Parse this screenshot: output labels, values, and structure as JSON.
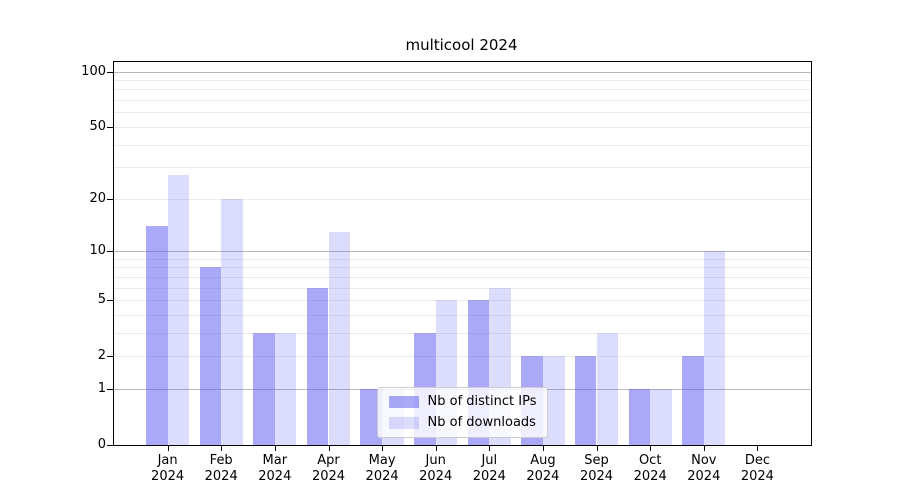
{
  "title": "multicool 2024",
  "chart_data": {
    "type": "bar",
    "title": "multicool 2024",
    "categories": [
      "Jan 2024",
      "Feb 2024",
      "Mar 2024",
      "Apr 2024",
      "May 2024",
      "Jun 2024",
      "Jul 2024",
      "Aug 2024",
      "Sep 2024",
      "Oct 2024",
      "Nov 2024",
      "Dec 2024"
    ],
    "series": [
      {
        "name": "Nb of distinct IPs",
        "color": "rgba(98,98,240,0.55)",
        "values": [
          14,
          8,
          3,
          6,
          1,
          3,
          5,
          2,
          2,
          1,
          2,
          0
        ]
      },
      {
        "name": "Nb of downloads",
        "color": "rgba(98,98,240,0.225)",
        "values": [
          27,
          20,
          3,
          13,
          1,
          5,
          6,
          2,
          3,
          1,
          10,
          0
        ]
      }
    ],
    "xlabel": "",
    "ylabel": "",
    "y_scale": "log1p",
    "ylim": [
      0,
      112.7
    ],
    "y_ticks": [
      0,
      1,
      2,
      5,
      10,
      20,
      50,
      100
    ],
    "y_major_gridlines": [
      1,
      10,
      100
    ],
    "y_minor_gridlines": [
      2,
      3,
      4,
      5,
      6,
      7,
      8,
      9,
      20,
      30,
      40,
      50,
      60,
      70,
      80,
      90
    ],
    "grid": true,
    "legend_position": "lower center"
  },
  "colors": {
    "ips_bar": "rgba(98,98,240,0.55)",
    "downloads_bar": "rgba(98,98,240,0.225)",
    "major_gridline": "#b9b9b9",
    "minor_gridline": "#ebebeb",
    "spine": "#000000",
    "background": "#ffffff"
  }
}
